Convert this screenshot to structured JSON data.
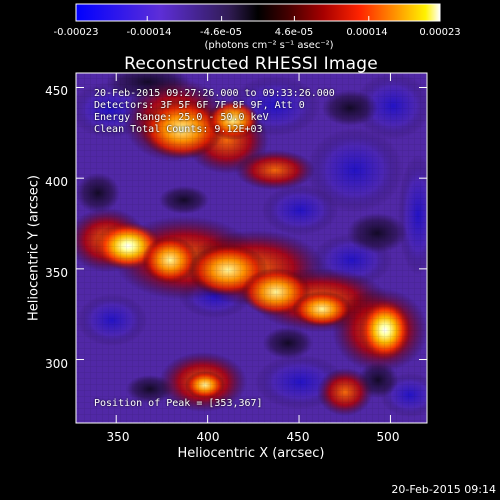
{
  "chart_data": {
    "type": "heatmap",
    "title": "Reconstructed RHESSI Image",
    "xlabel": "Heliocentric X (arcsec)",
    "ylabel": "Heliocentric Y (arcsec)",
    "xlim": [
      328,
      520
    ],
    "ylim": [
      265,
      458
    ],
    "x_ticks": [
      350,
      400,
      450,
      500
    ],
    "y_ticks": [
      300,
      350,
      400,
      450
    ],
    "colorbar": {
      "min": -0.00023,
      "max": 0.00023,
      "tick_values": [
        -0.00023,
        -0.00014,
        -4.6e-05,
        4.6e-05,
        0.00014,
        0.00023
      ],
      "tick_labels": [
        "-0.00023",
        "-0.00014",
        "-4.6e-05",
        "4.6e-05",
        "0.00014",
        "0.00023"
      ],
      "units": "(photons cm⁻² s⁻¹ asec⁻²)"
    },
    "annotations": {
      "time_range": "20-Feb-2015 09:27:26.000 to 09:33:26.000",
      "detectors": "Detectors: 3F 5F 6F 7F 8F 9F, Att 0",
      "energy_range": "Energy Range: 25.0 - 50.0 keV",
      "method_counts": "Clean     Total Counts: 9.12E+03",
      "peak_position": "Position of Peak = [353,367]"
    },
    "peak": [
      353,
      367
    ]
  },
  "footer": {
    "timestamp": "20-Feb-2015 09:14"
  },
  "colors": {
    "background": "#000000",
    "text": "#ffffff",
    "cmap_low": "#0000ff",
    "cmap_mid": "#000000",
    "cmap_high": "#ffffff"
  }
}
